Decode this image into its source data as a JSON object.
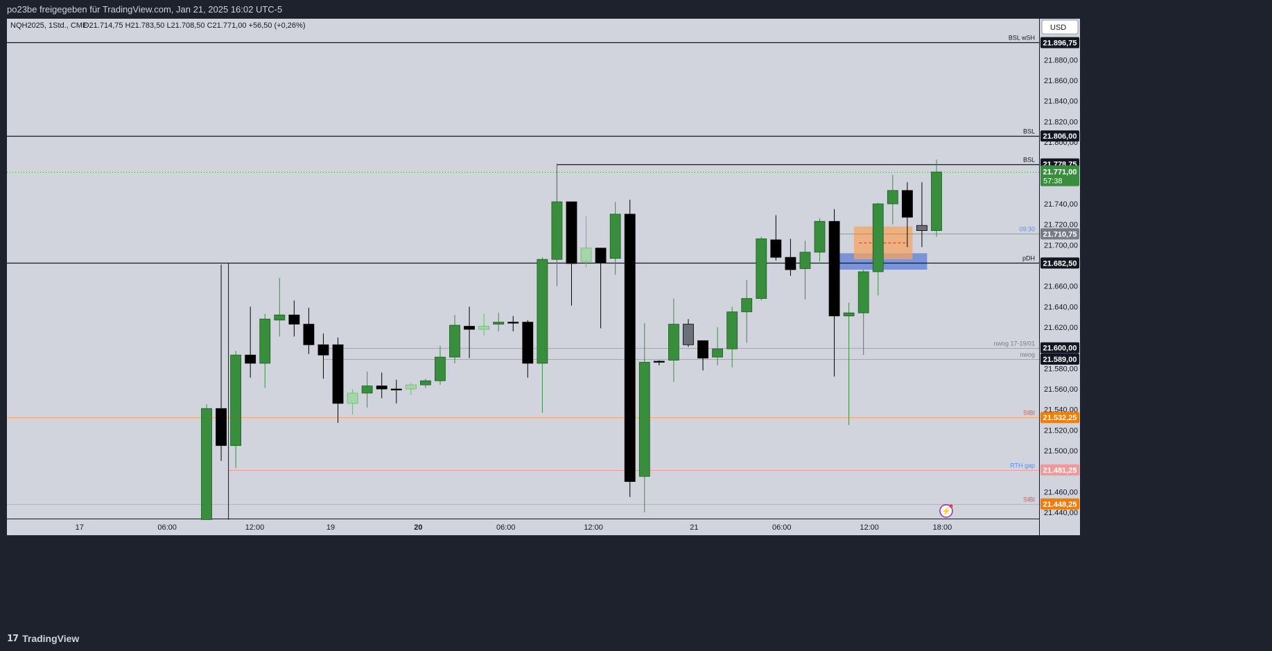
{
  "header": {
    "title": "po23be freigegeben für TradingView.com, Jan 21, 2025 16:02 UTC-5"
  },
  "legend": {
    "symbol": "NQH2025, 1Std., CME",
    "ohlc": "O21.714,75  H21.783,50  L21.708,50  C21.771,00  +56,50 (+0,26%)"
  },
  "currency_button": "USD",
  "footer": {
    "brand": "TradingView"
  },
  "colors": {
    "background": "#d1d4dc",
    "up": "#388e3c",
    "down": "#000000",
    "up_light": "#a5d6a7",
    "down_gray": "#6b6f7a",
    "orange_line": "#f57c00",
    "red_line": "#ef9a9a",
    "blue_zone": "#5c7fd6",
    "orange_zone": "#f5a463"
  },
  "chart_data": {
    "type": "candlestick",
    "ylim": [
      21434,
      21920
    ],
    "y_ticks": [
      "21.880,00",
      "21.860,00",
      "21.840,00",
      "21.820,00",
      "21.800,00",
      "21.740,00",
      "21.720,00",
      "21.700,00",
      "21.660,00",
      "21.640,00",
      "21.620,00",
      "21.580,00",
      "21.560,00",
      "21.540,00",
      "21.520,00",
      "21.500,00",
      "21.460,00",
      "21.440,00"
    ],
    "y_tick_values": [
      21880,
      21860,
      21840,
      21820,
      21800,
      21740,
      21720,
      21700,
      21660,
      21640,
      21620,
      21580,
      21560,
      21540,
      21520,
      21500,
      21460,
      21440
    ],
    "x_labels": [
      {
        "label": "17",
        "i": -8.7,
        "bold": false
      },
      {
        "label": "06:00",
        "i": -2.7,
        "bold": false
      },
      {
        "label": "12:00",
        "i": 3.3,
        "bold": false
      },
      {
        "label": "19",
        "i": 8.5,
        "bold": false
      },
      {
        "label": "20",
        "i": 14.5,
        "bold": true
      },
      {
        "label": "06:00",
        "i": 20.5,
        "bold": false
      },
      {
        "label": "12:00",
        "i": 26.5,
        "bold": false
      },
      {
        "label": "21",
        "i": 33.4,
        "bold": false
      },
      {
        "label": "06:00",
        "i": 39.4,
        "bold": false
      },
      {
        "label": "12:00",
        "i": 45.4,
        "bold": false
      },
      {
        "label": "18:00",
        "i": 50.4,
        "bold": false
      }
    ],
    "candles": [
      {
        "o": 21433,
        "h": 21545,
        "l": 21433,
        "c": 21541,
        "style": "up"
      },
      {
        "o": 21541,
        "h": 21681,
        "l": 21490,
        "c": 21505,
        "style": "down"
      },
      {
        "o": 21505,
        "h": 21597,
        "l": 21483,
        "c": 21593,
        "style": "up"
      },
      {
        "o": 21593,
        "h": 21640,
        "l": 21571,
        "c": 21585,
        "style": "down"
      },
      {
        "o": 21585,
        "h": 21633,
        "l": 21561,
        "c": 21628,
        "style": "up"
      },
      {
        "o": 21627,
        "h": 21668,
        "l": 21611,
        "c": 21632,
        "style": "up"
      },
      {
        "o": 21632,
        "h": 21646,
        "l": 21611,
        "c": 21623,
        "style": "down"
      },
      {
        "o": 21623,
        "h": 21639,
        "l": 21594,
        "c": 21603,
        "style": "down"
      },
      {
        "o": 21603,
        "h": 21614,
        "l": 21570,
        "c": 21593,
        "style": "down"
      },
      {
        "o": 21603,
        "h": 21610,
        "l": 21527,
        "c": 21546,
        "style": "down"
      },
      {
        "o": 21546,
        "h": 21560,
        "l": 21535,
        "c": 21556,
        "style": "up_light"
      },
      {
        "o": 21556,
        "h": 21577,
        "l": 21542,
        "c": 21563,
        "style": "up"
      },
      {
        "o": 21563,
        "h": 21576,
        "l": 21551,
        "c": 21560,
        "style": "down"
      },
      {
        "o": 21560,
        "h": 21569,
        "l": 21546,
        "c": 21560,
        "style": "down"
      },
      {
        "o": 21560,
        "h": 21566,
        "l": 21554,
        "c": 21564,
        "style": "up_light"
      },
      {
        "o": 21564,
        "h": 21570,
        "l": 21561,
        "c": 21568,
        "style": "up"
      },
      {
        "o": 21568,
        "h": 21602,
        "l": 21564,
        "c": 21591,
        "style": "up"
      },
      {
        "o": 21591,
        "h": 21632,
        "l": 21585,
        "c": 21622,
        "style": "up"
      },
      {
        "o": 21621,
        "h": 21640,
        "l": 21590,
        "c": 21618,
        "style": "down"
      },
      {
        "o": 21618,
        "h": 21633,
        "l": 21612,
        "c": 21621,
        "style": "up_light"
      },
      {
        "o": 21623,
        "h": 21634,
        "l": 21616,
        "c": 21625,
        "style": "up"
      },
      {
        "o": 21625,
        "h": 21631,
        "l": 21616,
        "c": 21625,
        "style": "down"
      },
      {
        "o": 21625,
        "h": 21627,
        "l": 21571,
        "c": 21585,
        "style": "down"
      },
      {
        "o": 21585,
        "h": 21688,
        "l": 21537,
        "c": 21686,
        "style": "up"
      },
      {
        "o": 21686,
        "h": 21779,
        "l": 21660,
        "c": 21742,
        "style": "up"
      },
      {
        "o": 21742,
        "h": 21742,
        "l": 21641,
        "c": 21682,
        "style": "down"
      },
      {
        "o": 21684,
        "h": 21728,
        "l": 21678,
        "c": 21697,
        "style": "up_light"
      },
      {
        "o": 21697,
        "h": 21697,
        "l": 21619,
        "c": 21683,
        "style": "down"
      },
      {
        "o": 21687,
        "h": 21742,
        "l": 21671,
        "c": 21730,
        "style": "up"
      },
      {
        "o": 21730,
        "h": 21744,
        "l": 21455,
        "c": 21470,
        "style": "down"
      },
      {
        "o": 21475,
        "h": 21624,
        "l": 21440,
        "c": 21586,
        "style": "up"
      },
      {
        "o": 21587,
        "h": 21588,
        "l": 21583,
        "c": 21587,
        "style": "down"
      },
      {
        "o": 21588,
        "h": 21648,
        "l": 21567,
        "c": 21623,
        "style": "up"
      },
      {
        "o": 21623,
        "h": 21628,
        "l": 21601,
        "c": 21603,
        "style": "down_gray"
      },
      {
        "o": 21607,
        "h": 21607,
        "l": 21578,
        "c": 21590,
        "style": "down"
      },
      {
        "o": 21591,
        "h": 21620,
        "l": 21583,
        "c": 21599,
        "style": "up"
      },
      {
        "o": 21599,
        "h": 21640,
        "l": 21581,
        "c": 21635,
        "style": "up"
      },
      {
        "o": 21635,
        "h": 21666,
        "l": 21605,
        "c": 21648,
        "style": "up"
      },
      {
        "o": 21648,
        "h": 21708,
        "l": 21646,
        "c": 21706,
        "style": "up"
      },
      {
        "o": 21705,
        "h": 21729,
        "l": 21685,
        "c": 21688,
        "style": "down"
      },
      {
        "o": 21688,
        "h": 21706,
        "l": 21670,
        "c": 21676,
        "style": "down"
      },
      {
        "o": 21677,
        "h": 21704,
        "l": 21647,
        "c": 21693,
        "style": "up"
      },
      {
        "o": 21693,
        "h": 21726,
        "l": 21684,
        "c": 21723,
        "style": "up"
      },
      {
        "o": 21723,
        "h": 21735,
        "l": 21572,
        "c": 21631,
        "style": "down"
      },
      {
        "o": 21631,
        "h": 21644,
        "l": 21525,
        "c": 21634,
        "style": "up"
      },
      {
        "o": 21634,
        "h": 21676,
        "l": 21593,
        "c": 21674,
        "style": "up"
      },
      {
        "o": 21674,
        "h": 21741,
        "l": 21651,
        "c": 21740,
        "style": "up"
      },
      {
        "o": 21740,
        "h": 21768,
        "l": 21720,
        "c": 21753,
        "style": "up"
      },
      {
        "o": 21753,
        "h": 21761,
        "l": 21698,
        "c": 21727,
        "style": "down"
      },
      {
        "o": 21719,
        "h": 21761,
        "l": 21698,
        "c": 21714,
        "style": "down_gray"
      },
      {
        "o": 21714,
        "h": 21783,
        "l": 21708,
        "c": 21771,
        "style": "up"
      }
    ],
    "levels": [
      {
        "label": "BSL wSH",
        "value": 21896.75,
        "price": "21.896,75",
        "kind": "black",
        "from": -10,
        "text_color": "#131722",
        "box": "#131722"
      },
      {
        "label": "BSL",
        "value": 21806,
        "price": "21.806,00",
        "kind": "black",
        "from": -10,
        "text_color": "#131722",
        "box": "#131722"
      },
      {
        "label": "BSL",
        "value": 21778.75,
        "price": "21.778,75",
        "kind": "black",
        "from": 24,
        "text_color": "#131722",
        "box": "#131722"
      },
      {
        "label": "pDH",
        "value": 21682.5,
        "price": "21.682,50",
        "kind": "black",
        "from": -10,
        "text_color": "#131722",
        "box": "#131722"
      },
      {
        "label": "09:30",
        "value": 21710.75,
        "price": "21.710,75",
        "kind": "gray",
        "from": 43,
        "text_color": "#5b8def",
        "box": "#787b86"
      },
      {
        "label": "nwog 17-19/01",
        "value": 21600,
        "price": "21.600,00",
        "kind": "thin_gray",
        "from": 8,
        "text_color": "#787b86",
        "box": "#131722"
      },
      {
        "label": "nwog",
        "value": 21589,
        "price": "21.589,00",
        "kind": "thin_gray",
        "from": 8,
        "text_color": "#787b86",
        "box": "#131722"
      },
      {
        "label": "SIBI",
        "value": 21532.25,
        "price": "21.532,25",
        "kind": "orange",
        "from": -10,
        "text_color": "#e05050",
        "box": "#f57c00"
      },
      {
        "label": "RTH gap",
        "value": 21481.25,
        "price": "21.481,25",
        "kind": "red",
        "from": 1.5,
        "text_color": "#5b8def",
        "box": "#ef9a9a"
      },
      {
        "label": "SIBI",
        "value": 21448.25,
        "price": "21.448,25",
        "kind": "orange",
        "from": -10,
        "text_color": "#e05050",
        "box": "#f57c00"
      }
    ],
    "current_price": {
      "value": 21771,
      "price": "21.771,00",
      "countdown": "57:38"
    },
    "zones": [
      {
        "from_i": 43,
        "to_i": 49,
        "y_top": 21692,
        "y_bottom": 21676,
        "color": "blue_zone"
      },
      {
        "from_i": 44.7,
        "to_i": 48,
        "y_top": 21718,
        "y_bottom": 21686,
        "color": "orange_zone"
      }
    ]
  }
}
